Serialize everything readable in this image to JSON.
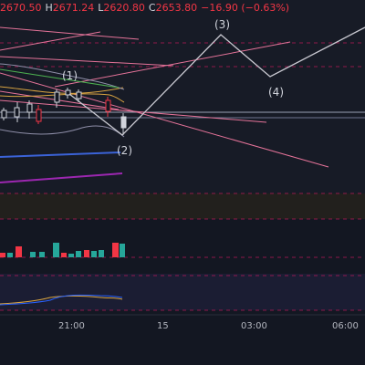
{
  "ohlc": {
    "open_value": "2670.50",
    "high_key": "H",
    "high_value": "2671.24",
    "low_key": "L",
    "low_value": "2620.80",
    "close_key": "C",
    "close_value": "2653.80",
    "change": "−16.90 (−0.63%)"
  },
  "wave_labels": {
    "w1": "(1)",
    "w2": "(2)",
    "w3": "(3)",
    "w4": "(4)"
  },
  "time_axis": {
    "t1": "21:00",
    "t2": "15",
    "t3": "03:00",
    "t4": "06:00"
  },
  "colors": {
    "background": "#131722",
    "down": "#f23645",
    "up": "#26a69a",
    "wave_line": "#c9c9d1",
    "trend_pink": "#e57399",
    "blue_line": "#3b63d8",
    "purple_line": "#9c27b0",
    "text": "#d1d4dc"
  }
}
